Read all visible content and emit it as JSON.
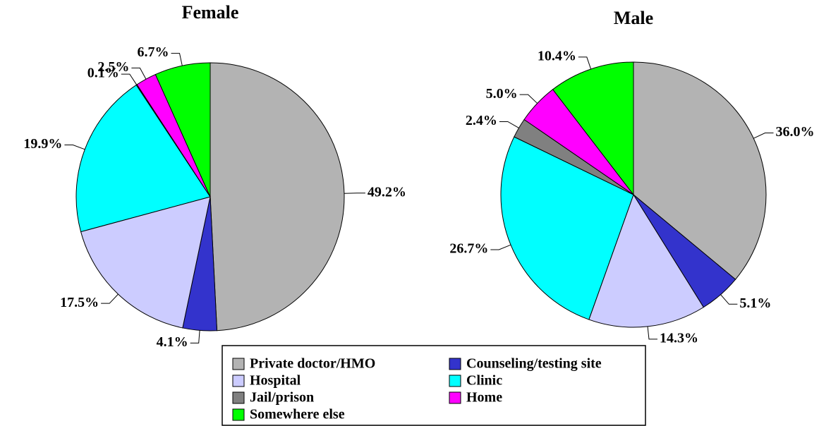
{
  "categories": [
    "Private doctor/HMO",
    "Counseling/testing site",
    "Hospital",
    "Clinic",
    "Jail/prison",
    "Home",
    "Somewhere else"
  ],
  "colors": [
    "#b3b3b3",
    "#3333cc",
    "#ccccff",
    "#00ffff",
    "#808080",
    "#ff00ff",
    "#00ff00"
  ],
  "chart_data": [
    {
      "type": "pie",
      "title": "Female",
      "values": [
        49.2,
        4.1,
        17.5,
        19.9,
        0.1,
        2.5,
        6.7
      ],
      "value_labels": [
        "49.2%",
        "4.1%",
        "17.5%",
        "19.9%",
        "0.1%",
        "2.5%",
        "6.7%"
      ]
    },
    {
      "type": "pie",
      "title": "Male",
      "values": [
        36.0,
        5.1,
        14.3,
        26.7,
        2.4,
        5.0,
        10.4
      ],
      "value_labels": [
        "36.0%",
        "5.1%",
        "14.3%",
        "26.7%",
        "2.4%",
        "5.0%",
        "10.4%"
      ]
    }
  ]
}
